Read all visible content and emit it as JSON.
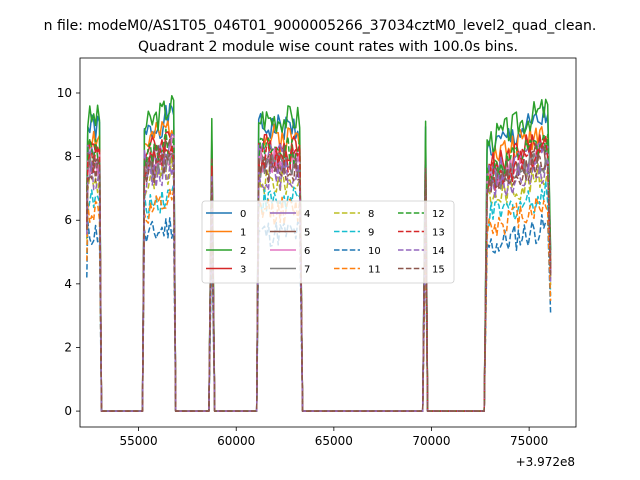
{
  "chart_data": {
    "type": "line",
    "title": "Quadrant 2 module wise count rates with 100.0s bins.",
    "suptitle": "n file: modeM0/AS1T05_046T01_9000005266_37034cztM0_level2_quad_clean.",
    "xlabel": "",
    "ylabel": "",
    "x_offset_label": "+3.972e8",
    "xlim": [
      52000,
      77400
    ],
    "ylim": [
      -0.5,
      11.1
    ],
    "x_ticks": [
      "55000",
      "60000",
      "65000",
      "70000",
      "75000"
    ],
    "x_tick_values": [
      55000,
      60000,
      65000,
      70000,
      75000
    ],
    "y_ticks": [
      "0",
      "2",
      "4",
      "6",
      "8",
      "10"
    ],
    "y_tick_values": [
      0,
      2,
      4,
      6,
      8,
      10
    ],
    "grid": false,
    "legend": {
      "placement": "center",
      "columns": 4
    },
    "active_segments": [
      {
        "start": 52400,
        "end": 53000,
        "edge_end": 53100
      },
      {
        "start": 55300,
        "end": 56800,
        "edge_start": 55200,
        "edge_end": 56900
      },
      {
        "start": 58750,
        "end": 58750,
        "edge_start": 58600,
        "edge_end": 58900
      },
      {
        "start": 61150,
        "end": 63300,
        "edge_start": 61050,
        "edge_end": 63400
      },
      {
        "start": 69700,
        "end": 69700,
        "edge_start": 69550,
        "edge_end": 69800
      },
      {
        "start": 72850,
        "end": 76000,
        "edge_start": 72700,
        "edge_end": 76100
      }
    ],
    "series": [
      {
        "name": "0",
        "style": "solid",
        "color": "#1f77b4",
        "level": 8.9
      },
      {
        "name": "1",
        "style": "solid",
        "color": "#ff7f0e",
        "level": 8.6
      },
      {
        "name": "2",
        "style": "solid",
        "color": "#2ca02c",
        "level": 9.2
      },
      {
        "name": "3",
        "style": "solid",
        "color": "#d62728",
        "level": 8.3
      },
      {
        "name": "4",
        "style": "solid",
        "color": "#9467bd",
        "level": 8.0
      },
      {
        "name": "5",
        "style": "solid",
        "color": "#8c564b",
        "level": 7.9
      },
      {
        "name": "6",
        "style": "solid",
        "color": "#e377c2",
        "level": 7.8
      },
      {
        "name": "7",
        "style": "solid",
        "color": "#7f7f7f",
        "level": 7.7
      },
      {
        "name": "8",
        "style": "dashed",
        "color": "#bcbd22",
        "level": 7.2
      },
      {
        "name": "9",
        "style": "dashed",
        "color": "#17becf",
        "level": 6.6
      },
      {
        "name": "10",
        "style": "dashed",
        "color": "#1f77b4",
        "level": 5.6
      },
      {
        "name": "11",
        "style": "dashed",
        "color": "#ff7f0e",
        "level": 6.3
      },
      {
        "name": "12",
        "style": "dashed",
        "color": "#2ca02c",
        "level": 8.2
      },
      {
        "name": "13",
        "style": "dashed",
        "color": "#d62728",
        "level": 7.9
      },
      {
        "name": "14",
        "style": "dashed",
        "color": "#9467bd",
        "level": 7.4
      },
      {
        "name": "15",
        "style": "dashed",
        "color": "#8c564b",
        "level": 7.6
      }
    ]
  }
}
